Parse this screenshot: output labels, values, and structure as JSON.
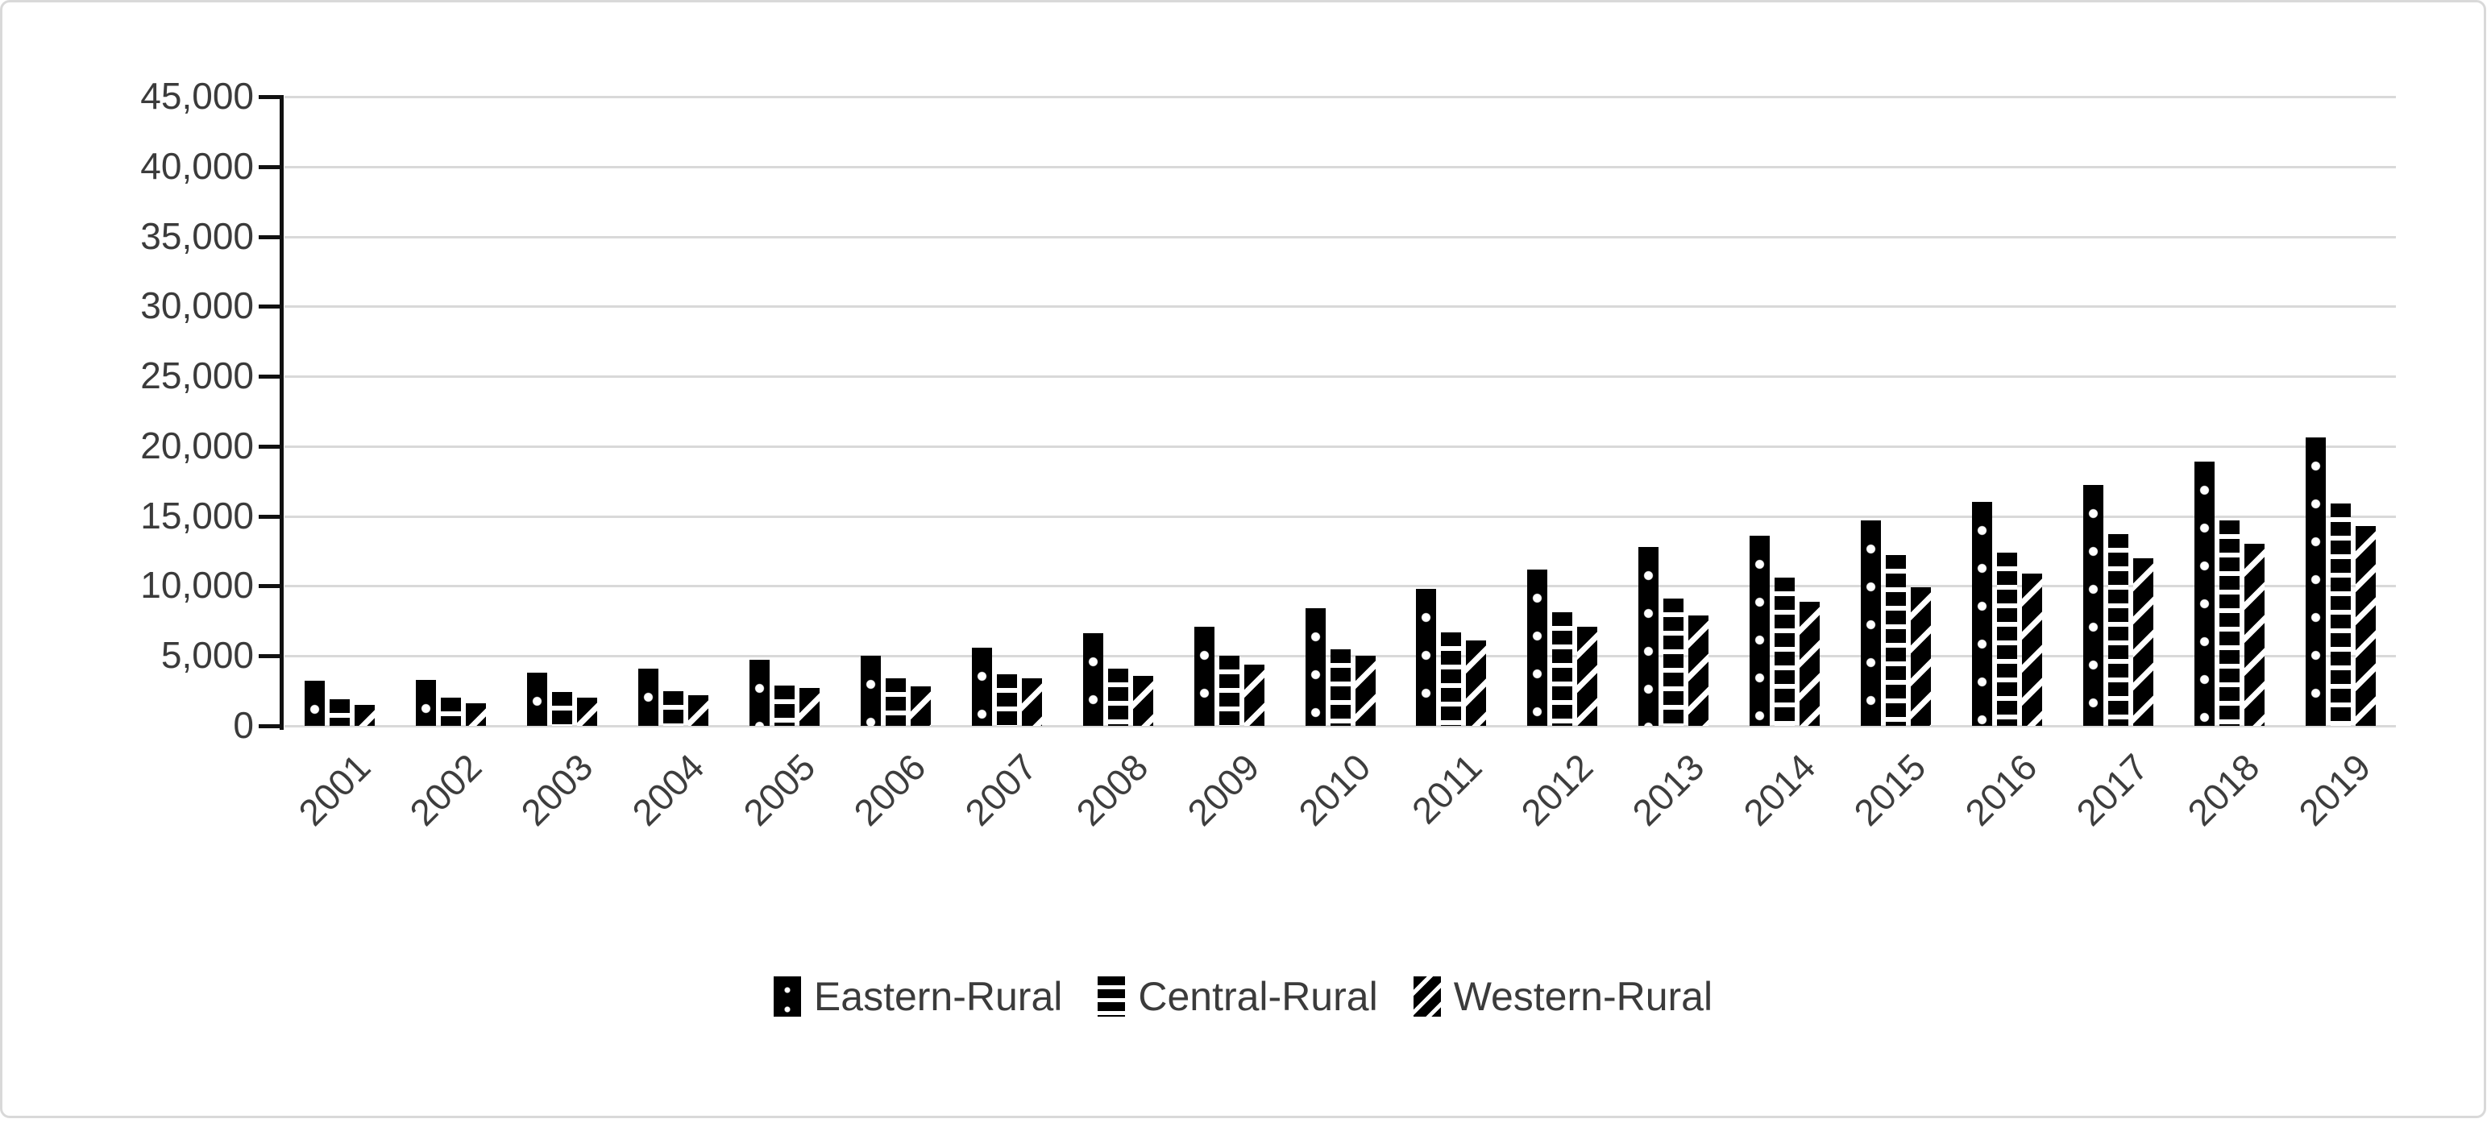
{
  "chart_data": {
    "type": "bar",
    "title": "",
    "xlabel": "",
    "ylabel": "",
    "categories": [
      "2001",
      "2002",
      "2003",
      "2004",
      "2005",
      "2006",
      "2007",
      "2008",
      "2009",
      "2010",
      "2011",
      "2012",
      "2013",
      "2014",
      "2015",
      "2016",
      "2017",
      "2018",
      "2019"
    ],
    "series": [
      {
        "name": "Eastern-Rural",
        "pattern": "dots",
        "values": [
          3200,
          3300,
          3800,
          4100,
          4700,
          5000,
          5600,
          6600,
          7100,
          8400,
          9800,
          11200,
          12800,
          13600,
          14700,
          16000,
          17200,
          18900,
          20600
        ]
      },
      {
        "name": "Central-Rural",
        "pattern": "hstripe",
        "values": [
          1900,
          2000,
          2400,
          2500,
          2900,
          3400,
          3700,
          4100,
          5000,
          5500,
          6700,
          8100,
          9100,
          10600,
          12200,
          12400,
          13700,
          14700,
          15900
        ]
      },
      {
        "name": "Western-Rural",
        "pattern": "dstripe",
        "values": [
          1500,
          1600,
          2000,
          2200,
          2700,
          2800,
          3400,
          3600,
          4400,
          5000,
          6100,
          7100,
          7900,
          8900,
          9900,
          10900,
          12000,
          13000,
          14300
        ]
      }
    ],
    "ylim": [
      0,
      45000
    ],
    "y_tick_step": 5000,
    "y_tick_labels": [
      "0",
      "5,000",
      "10,000",
      "15,000",
      "20,000",
      "25,000",
      "30,000",
      "35,000",
      "40,000",
      "45,000"
    ],
    "grid": true,
    "legend_position": "bottom",
    "bar_color": "#000000",
    "gridline_color": "#d9d9d9",
    "axis_color": "#111111",
    "label_color": "#3b3b3b"
  }
}
